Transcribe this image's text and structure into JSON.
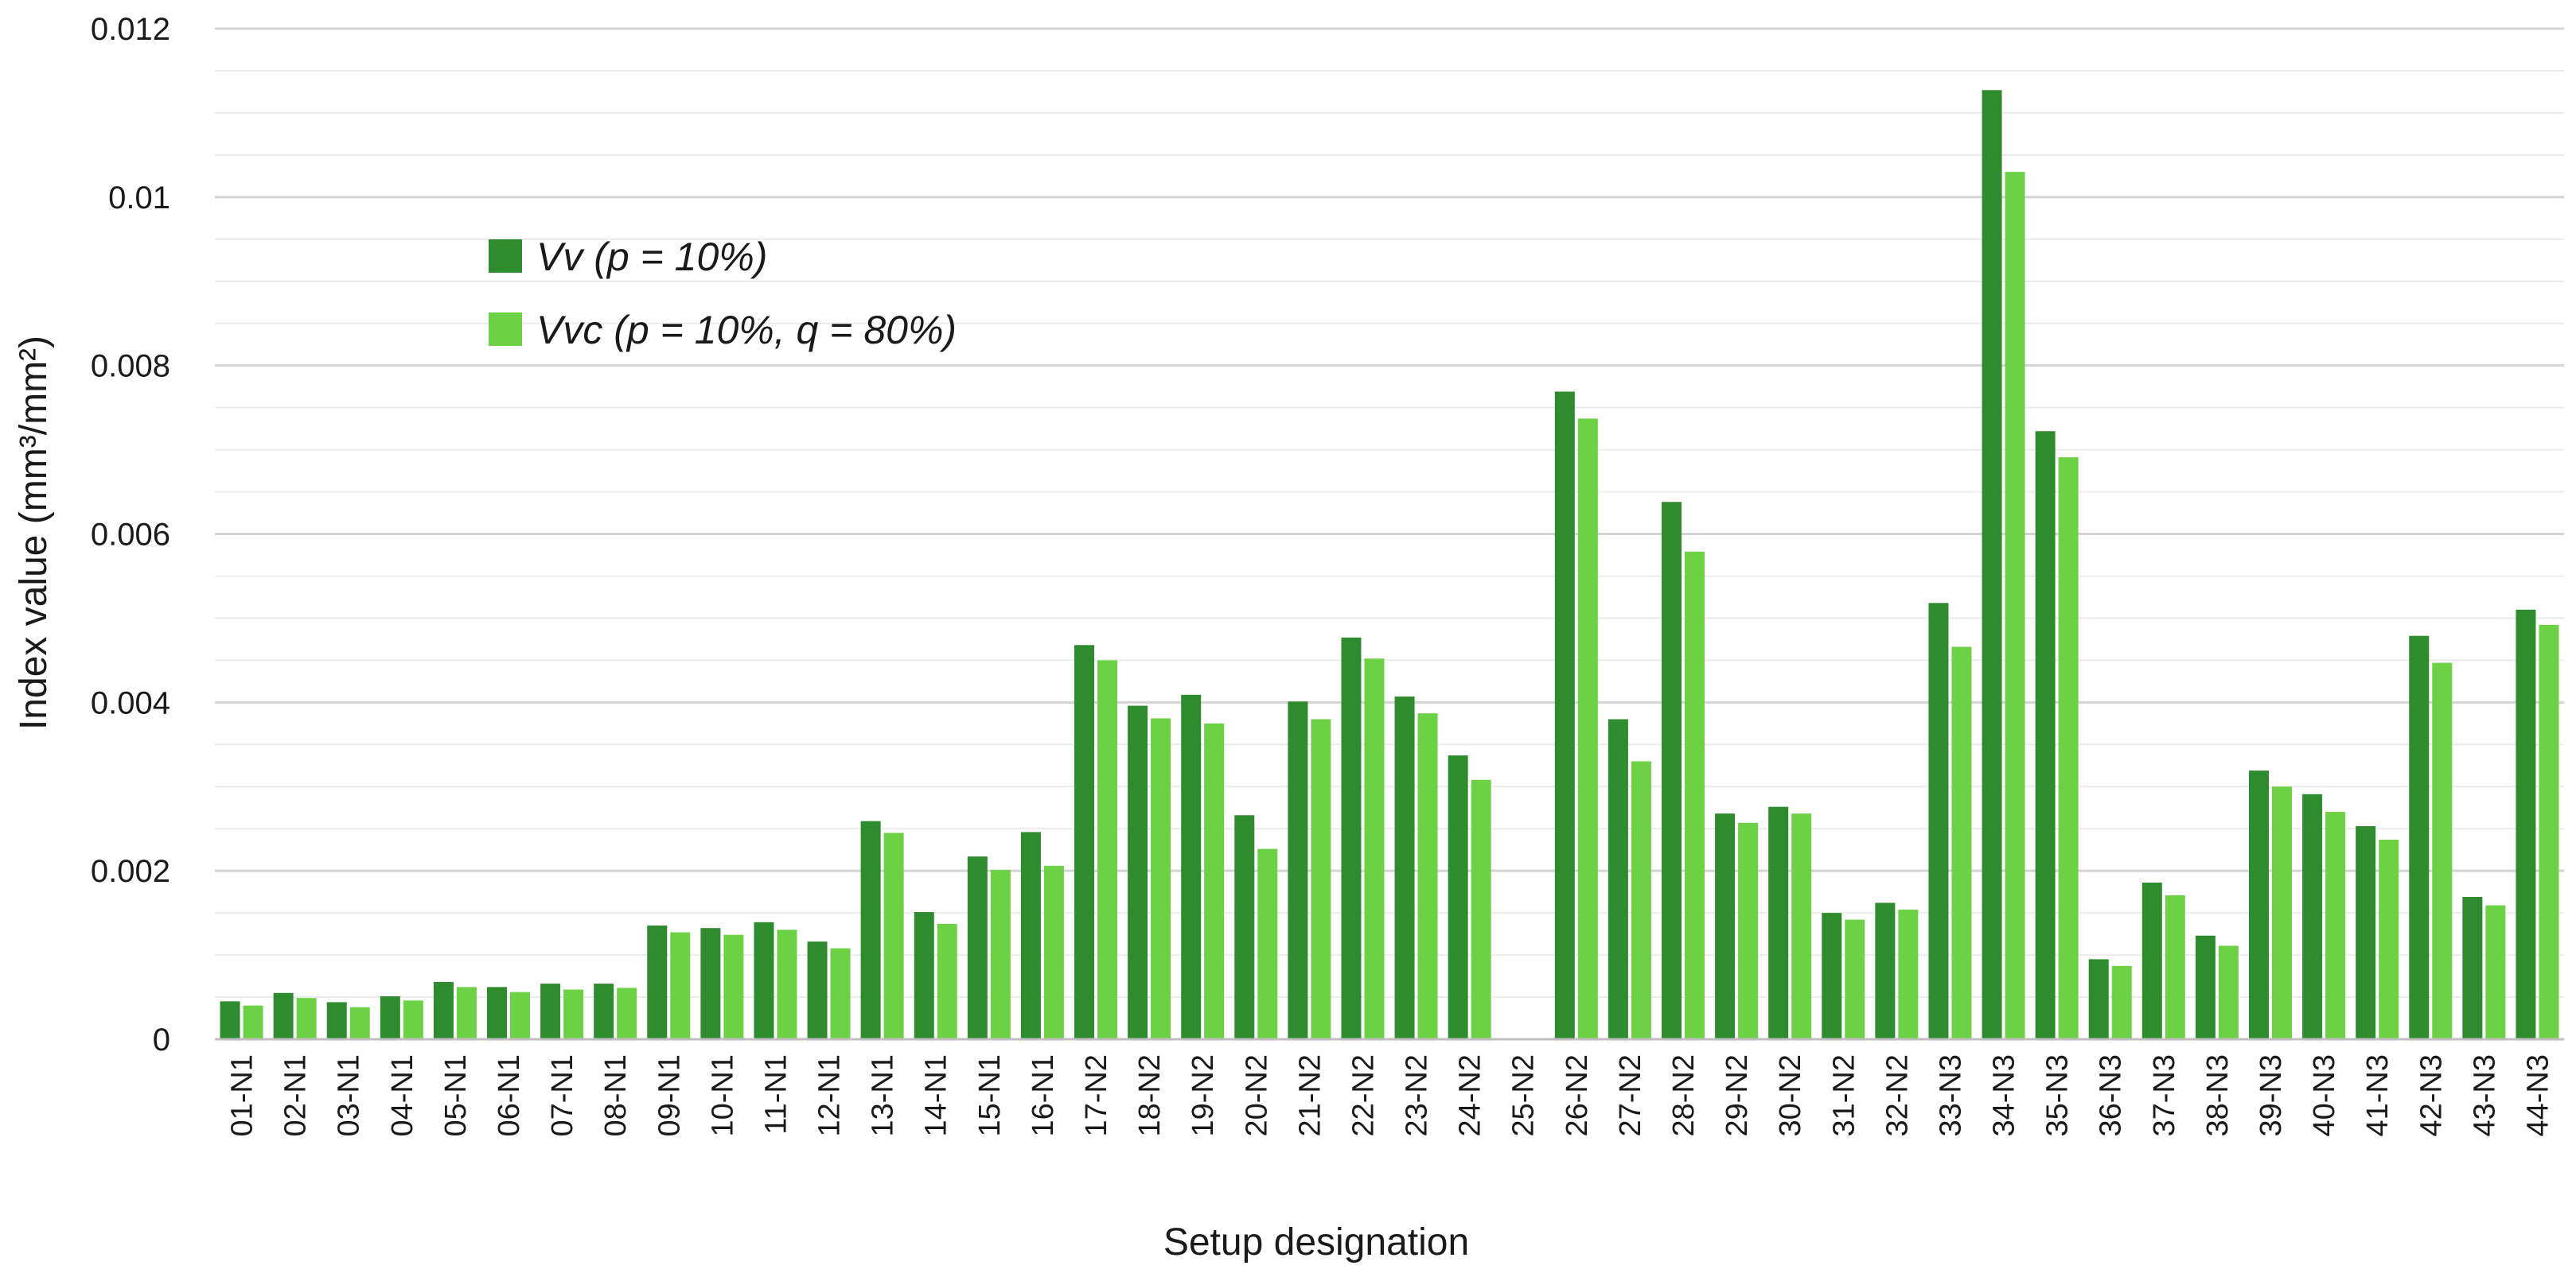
{
  "chart_data": {
    "type": "bar",
    "title": "",
    "xlabel": "Setup designation",
    "ylabel": "Index value (mm³/mm²)",
    "ylim": [
      0,
      0.012
    ],
    "yticks": [
      "0",
      "0.002",
      "0.004",
      "0.006",
      "0.008",
      "0.01",
      "0.012"
    ],
    "grid": true,
    "legend_position": "top-left",
    "categories": [
      "01-N1",
      "02-N1",
      "03-N1",
      "04-N1",
      "05-N1",
      "06-N1",
      "07-N1",
      "08-N1",
      "09-N1",
      "10-N1",
      "11-N1",
      "12-N1",
      "13-N1",
      "14-N1",
      "15-N1",
      "16-N1",
      "17-N2",
      "18-N2",
      "19-N2",
      "20-N2",
      "21-N2",
      "22-N2",
      "23-N2",
      "24-N2",
      "25-N2",
      "26-N2",
      "27-N2",
      "28-N2",
      "29-N2",
      "30-N2",
      "31-N2",
      "32-N2",
      "33-N3",
      "34-N3",
      "35-N3",
      "36-N3",
      "37-N3",
      "38-N3",
      "39-N3",
      "40-N3",
      "41-N3",
      "42-N3",
      "43-N3",
      "44-N3"
    ],
    "series": [
      {
        "name": "Vv (p = 10%)",
        "color": "#2e8b2e",
        "values": [
          0.00045,
          0.00055,
          0.00044,
          0.00051,
          0.00068,
          0.00062,
          0.00066,
          0.00066,
          0.00135,
          0.00132,
          0.00139,
          0.00116,
          0.00259,
          0.00151,
          0.00217,
          0.00246,
          0.00468,
          0.00396,
          0.00409,
          0.00266,
          0.00401,
          0.00477,
          0.00407,
          0.00337,
          0,
          0.00769,
          0.0038,
          0.00638,
          0.00268,
          0.00276,
          0.0015,
          0.00162,
          0.00518,
          0.01127,
          0.00722,
          0.00095,
          0.00186,
          0.00123,
          0.00319,
          0.00291,
          0.00253,
          0.00479,
          0.00169,
          0.0051
        ]
      },
      {
        "name": "Vvc (p = 10%, q = 80%)",
        "color": "#6dd146",
        "values": [
          0.0004,
          0.00049,
          0.00038,
          0.00046,
          0.00062,
          0.00056,
          0.00059,
          0.00061,
          0.00127,
          0.00124,
          0.0013,
          0.00108,
          0.00245,
          0.00137,
          0.00201,
          0.00206,
          0.0045,
          0.00381,
          0.00375,
          0.00226,
          0.0038,
          0.00452,
          0.00387,
          0.00308,
          0,
          0.00737,
          0.0033,
          0.00579,
          0.00257,
          0.00268,
          0.00142,
          0.00154,
          0.00466,
          0.0103,
          0.00691,
          0.00087,
          0.00171,
          0.00111,
          0.003,
          0.0027,
          0.00237,
          0.00447,
          0.00159,
          0.00492
        ]
      }
    ]
  }
}
